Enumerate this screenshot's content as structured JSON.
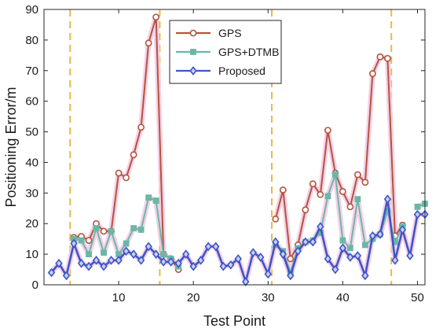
{
  "chart_data": {
    "type": "line",
    "xlabel": "Test Point",
    "ylabel": "Positioning Error/m",
    "xlim": [
      0,
      51
    ],
    "ylim": [
      0,
      90
    ],
    "xticks": [
      10,
      20,
      30,
      40,
      50
    ],
    "yticks": [
      0,
      10,
      20,
      30,
      40,
      50,
      60,
      70,
      80,
      90
    ],
    "legend_position": "top-center",
    "grid": false,
    "vertical_markers": {
      "color": "#e8b84a",
      "style": "dashed",
      "x": [
        3.5,
        15.5,
        30.5,
        46.5
      ]
    },
    "series": [
      {
        "name": "GPS",
        "color": "#b5533c",
        "halo": "#f3c9e4",
        "marker": "circle",
        "x": [
          4,
          5,
          6,
          7,
          8,
          9,
          10,
          11,
          12,
          13,
          14,
          15,
          16,
          17,
          18,
          31,
          32,
          33,
          34,
          35,
          36,
          37,
          38,
          39,
          40,
          41,
          42,
          43,
          44,
          45,
          46,
          47,
          48
        ],
        "values": [
          15.5,
          15.8,
          14.5,
          20,
          17.5,
          17.5,
          36.5,
          35,
          42.5,
          51.5,
          79,
          87.5,
          10,
          8.5,
          5,
          21.5,
          31,
          8.5,
          13,
          24.5,
          33,
          29.5,
          50.5,
          36.5,
          30.5,
          25.5,
          36,
          33.5,
          69,
          74.5,
          74,
          16,
          19.5
        ]
      },
      {
        "name": "GPS+DTMB",
        "color": "#6ab7a8",
        "halo": "#f3c9e4",
        "marker": "square",
        "x": [
          4,
          5,
          6,
          7,
          8,
          9,
          10,
          11,
          12,
          13,
          14,
          15,
          16,
          17,
          18,
          31,
          32,
          33,
          34,
          35,
          36,
          37,
          38,
          39,
          40,
          41,
          42,
          43,
          44,
          45,
          46,
          47,
          48,
          50,
          51
        ],
        "values": [
          15,
          14.5,
          10,
          18.5,
          10.5,
          17.5,
          10,
          13.5,
          18.5,
          18,
          28.5,
          27.5,
          10,
          8.5,
          6,
          13,
          11,
          4,
          12,
          14,
          14.5,
          17,
          29,
          36,
          14.5,
          12,
          28,
          13,
          15,
          16.5,
          24,
          14,
          19,
          25.5,
          26.5
        ]
      },
      {
        "name": "Proposed",
        "color": "#3c55c8",
        "halo": "#f3c9e4",
        "marker": "diamond",
        "x": [
          1,
          2,
          3,
          4,
          5,
          6,
          7,
          8,
          9,
          10,
          11,
          12,
          13,
          14,
          15,
          16,
          17,
          18,
          19,
          20,
          21,
          22,
          23,
          24,
          25,
          26,
          27,
          28,
          29,
          30,
          31,
          32,
          33,
          34,
          35,
          36,
          37,
          38,
          39,
          40,
          41,
          42,
          43,
          44,
          45,
          46,
          47,
          48,
          49,
          50,
          51
        ],
        "values": [
          4,
          7,
          3,
          13.5,
          7,
          6,
          8,
          6,
          8,
          8,
          11,
          10,
          8,
          12.5,
          10,
          7.5,
          7.5,
          7,
          10,
          6,
          8,
          12.5,
          12.5,
          6,
          6.5,
          8.5,
          1,
          10.5,
          9,
          3.5,
          14,
          10,
          3,
          11,
          14,
          14,
          19,
          8.5,
          5,
          12,
          9,
          9.5,
          3,
          16,
          16.5,
          28,
          8,
          18,
          9.5,
          23,
          23
        ]
      }
    ]
  }
}
